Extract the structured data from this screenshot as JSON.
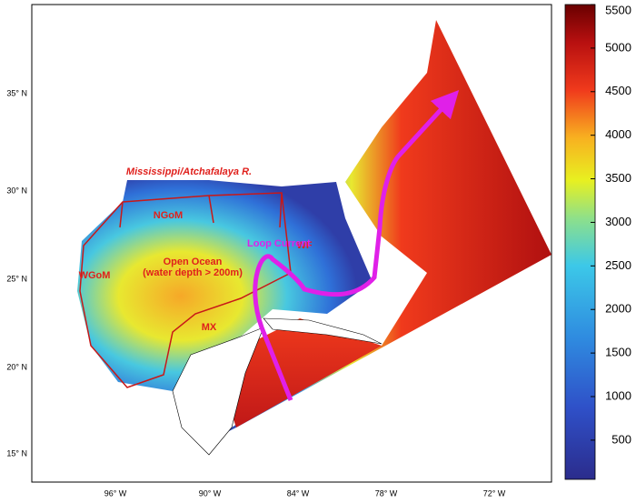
{
  "map": {
    "lat_labels": [
      "35° N",
      "30° N",
      "25° N",
      "20° N",
      "15° N"
    ],
    "lon_labels": [
      "96° W",
      "90° W",
      "84° W",
      "78° W",
      "72° W"
    ],
    "regions": [
      "Mississippi/Atchafalaya R.",
      "NGoM",
      "WGoM",
      "MX",
      "WF",
      "Open Ocean",
      "(water depth > 200m)",
      "Loop Current"
    ]
  },
  "colorbar": {
    "lim": [
      50,
      5500
    ],
    "ticks": [
      500,
      1000,
      1500,
      2000,
      2500,
      3000,
      3500,
      4000,
      4500,
      5000,
      5500
    ]
  }
}
